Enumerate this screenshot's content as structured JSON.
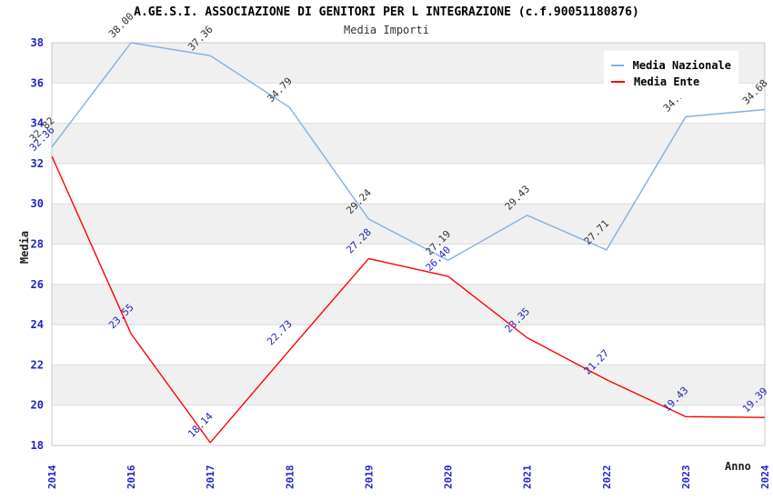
{
  "header": {
    "title": "A.GE.S.I. ASSOCIAZIONE DI GENITORI PER L INTEGRAZIONE (c.f.90051180876)",
    "subtitle": "Media Importi"
  },
  "legend": {
    "items": [
      {
        "label": "Media Nazionale",
        "color": "#7fb1e4"
      },
      {
        "label": "Media Ente",
        "color": "#ff0000"
      }
    ]
  },
  "chart_data": {
    "type": "line",
    "title": "A.GE.S.I. ASSOCIAZIONE DI GENITORI PER L INTEGRAZIONE (c.f.90051180876)",
    "subtitle": "Media Importi",
    "xlabel": "Anno",
    "ylabel": "Media",
    "categories": [
      "2014",
      "2016",
      "2017",
      "2018",
      "2019",
      "2020",
      "2021",
      "2022",
      "2023",
      "2024"
    ],
    "series": [
      {
        "name": "Media Nazionale",
        "color": "#7fb1e4",
        "label_color": "#333333",
        "values": [
          32.82,
          38.0,
          37.36,
          34.79,
          29.24,
          27.19,
          29.43,
          27.71,
          34.32,
          34.68
        ]
      },
      {
        "name": "Media Ente",
        "color": "#ff0000",
        "label_color": "#2222bb",
        "values": [
          32.36,
          23.55,
          18.14,
          22.73,
          27.28,
          26.4,
          23.35,
          21.27,
          19.43,
          19.39
        ]
      }
    ],
    "ylim": [
      18,
      38
    ],
    "y_ticks": [
      18,
      20,
      22,
      24,
      26,
      28,
      30,
      32,
      34,
      36,
      38
    ],
    "tick_label_color": "#2222cc",
    "band_color": "#f0f0f0",
    "grid_color": "#dcdcdc",
    "border_color": "#c8c8c8",
    "grid": "horizontal-bands",
    "legend_position": "top-right"
  }
}
